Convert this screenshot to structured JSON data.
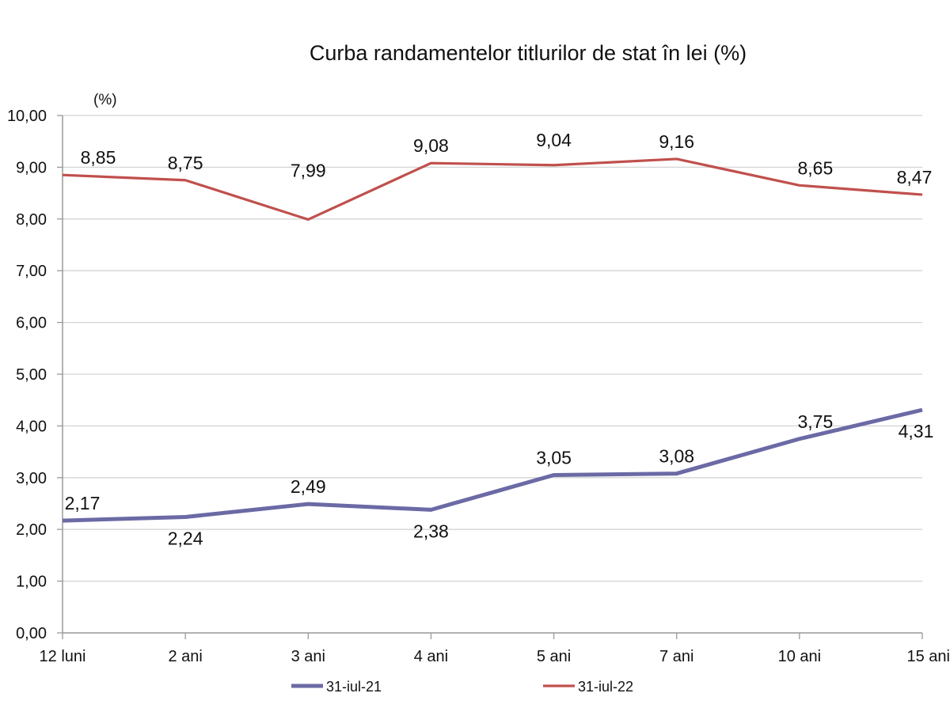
{
  "chart_data": {
    "type": "line",
    "title": "Curba randamentelor titlurilor de stat în lei (%)",
    "ylabel": "(%)",
    "xlabel": "",
    "categories": [
      "12 luni",
      "2 ani",
      "3 ani",
      "4 ani",
      "5 ani",
      "7 ani",
      "10 ani",
      "15 ani"
    ],
    "ylim": [
      0,
      10
    ],
    "yticks": [
      "0,00",
      "1,00",
      "2,00",
      "3,00",
      "4,00",
      "5,00",
      "6,00",
      "7,00",
      "8,00",
      "9,00",
      "10,00"
    ],
    "grid": true,
    "legend_position": "bottom",
    "series": [
      {
        "name": "31-iul-21",
        "color": "#6b6aa5",
        "values": [
          2.17,
          2.24,
          2.49,
          2.38,
          3.05,
          3.08,
          3.75,
          4.31
        ],
        "labels": [
          "2,17",
          "2,24",
          "2,49",
          "2,38",
          "3,05",
          "3,08",
          "3,75",
          "4,31"
        ]
      },
      {
        "name": "31-iul-22",
        "color": "#c0504d",
        "values": [
          8.85,
          8.75,
          7.99,
          9.08,
          9.04,
          9.16,
          8.65,
          8.47
        ],
        "labels": [
          "8,85",
          "8,75",
          "7,99",
          "9,08",
          "9,04",
          "9,16",
          "8,65",
          "8,47"
        ]
      }
    ]
  }
}
